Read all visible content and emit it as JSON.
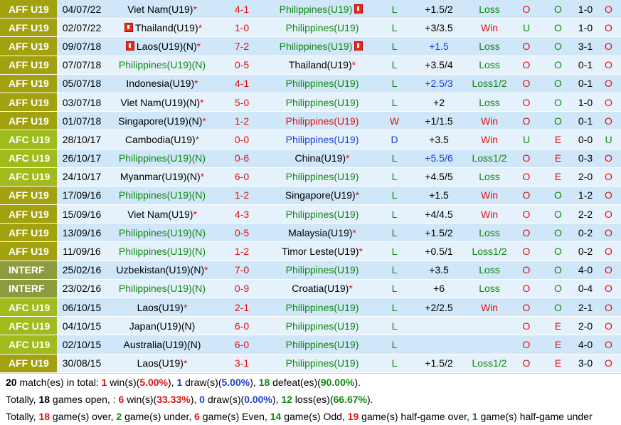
{
  "rows": [
    {
      "league": "AFF U19",
      "lg": "aff",
      "date": "04/07/22",
      "home": "Viet Nam(U19)",
      "hs": "*",
      "hc": "",
      "hflag": false,
      "score": "4-1",
      "away": "Philippines(U19)",
      "as": "",
      "ac": "green",
      "aflag": true,
      "res": "L",
      "resc": "green",
      "hcap": "+1.5/2",
      "hcapc": "",
      "wl": "Loss",
      "wlc": "green",
      "ou": "O",
      "ouc": "red",
      "x1": "O",
      "x1c": "green",
      "ht": "1-0",
      "last": "O",
      "lastc": "red"
    },
    {
      "league": "AFF U19",
      "lg": "aff",
      "date": "02/07/22",
      "home": "Thailand(U19)",
      "hs": "*",
      "hc": "",
      "hflag": true,
      "score": "1-0",
      "away": "Philippines(U19)",
      "as": "",
      "ac": "green",
      "aflag": false,
      "res": "L",
      "resc": "green",
      "hcap": "+3/3.5",
      "hcapc": "",
      "wl": "Win",
      "wlc": "red",
      "ou": "U",
      "ouc": "green",
      "x1": "O",
      "x1c": "green",
      "ht": "1-0",
      "last": "O",
      "lastc": "red"
    },
    {
      "league": "AFF U19",
      "lg": "aff",
      "date": "09/07/18",
      "home": "Laos(U19)(N)",
      "hs": "*",
      "hc": "",
      "hflag": true,
      "score": "7-2",
      "away": "Philippines(U19)",
      "as": "",
      "ac": "green",
      "aflag": true,
      "res": "L",
      "resc": "green",
      "hcap": "+1.5",
      "hcapc": "blue",
      "wl": "Loss",
      "wlc": "green",
      "ou": "O",
      "ouc": "red",
      "x1": "O",
      "x1c": "green",
      "ht": "3-1",
      "last": "O",
      "lastc": "red"
    },
    {
      "league": "AFF U19",
      "lg": "aff",
      "date": "07/07/18",
      "home": "Philippines(U19)(N)",
      "hs": "",
      "hc": "green",
      "hflag": false,
      "score": "0-5",
      "away": "Thailand(U19)",
      "as": "*",
      "ac": "",
      "aflag": false,
      "res": "L",
      "resc": "green",
      "hcap": "+3.5/4",
      "hcapc": "",
      "wl": "Loss",
      "wlc": "green",
      "ou": "O",
      "ouc": "red",
      "x1": "O",
      "x1c": "green",
      "ht": "0-1",
      "last": "O",
      "lastc": "red"
    },
    {
      "league": "AFF U19",
      "lg": "aff",
      "date": "05/07/18",
      "home": "Indonesia(U19)",
      "hs": "*",
      "hc": "",
      "hflag": false,
      "score": "4-1",
      "away": "Philippines(U19)",
      "as": "",
      "ac": "green",
      "aflag": false,
      "res": "L",
      "resc": "green",
      "hcap": "+2.5/3",
      "hcapc": "blue",
      "wl": "Loss1/2",
      "wlc": "green",
      "ou": "O",
      "ouc": "red",
      "x1": "O",
      "x1c": "green",
      "ht": "0-1",
      "last": "O",
      "lastc": "red"
    },
    {
      "league": "AFF U19",
      "lg": "aff",
      "date": "03/07/18",
      "home": "Viet Nam(U19)(N)",
      "hs": "*",
      "hc": "",
      "hflag": false,
      "score": "5-0",
      "away": "Philippines(U19)",
      "as": "",
      "ac": "green",
      "aflag": false,
      "res": "L",
      "resc": "green",
      "hcap": "+2",
      "hcapc": "",
      "wl": "Loss",
      "wlc": "green",
      "ou": "O",
      "ouc": "red",
      "x1": "O",
      "x1c": "green",
      "ht": "1-0",
      "last": "O",
      "lastc": "red"
    },
    {
      "league": "AFF U19",
      "lg": "aff",
      "date": "01/07/18",
      "home": "Singapore(U19)(N)",
      "hs": "*",
      "hc": "",
      "hflag": false,
      "score": "1-2",
      "away": "Philippines(U19)",
      "as": "",
      "ac": "red",
      "aflag": false,
      "res": "W",
      "resc": "red",
      "hcap": "+1/1.5",
      "hcapc": "",
      "wl": "Win",
      "wlc": "red",
      "ou": "O",
      "ouc": "red",
      "x1": "O",
      "x1c": "green",
      "ht": "0-1",
      "last": "O",
      "lastc": "red"
    },
    {
      "league": "AFC U19",
      "lg": "afc",
      "date": "28/10/17",
      "home": "Cambodia(U19)",
      "hs": "*",
      "hc": "",
      "hflag": false,
      "score": "0-0",
      "away": "Philippines(U19)",
      "as": "",
      "ac": "blue",
      "aflag": false,
      "res": "D",
      "resc": "blue",
      "hcap": "+3.5",
      "hcapc": "",
      "wl": "Win",
      "wlc": "red",
      "ou": "U",
      "ouc": "green",
      "x1": "E",
      "x1c": "red",
      "ht": "0-0",
      "last": "U",
      "lastc": "green"
    },
    {
      "league": "AFC U19",
      "lg": "afc",
      "date": "26/10/17",
      "home": "Philippines(U19)(N)",
      "hs": "",
      "hc": "green",
      "hflag": false,
      "score": "0-6",
      "away": "China(U19)",
      "as": "*",
      "ac": "",
      "aflag": false,
      "res": "L",
      "resc": "green",
      "hcap": "+5.5/6",
      "hcapc": "blue",
      "wl": "Loss1/2",
      "wlc": "green",
      "ou": "O",
      "ouc": "red",
      "x1": "E",
      "x1c": "red",
      "ht": "0-3",
      "last": "O",
      "lastc": "red"
    },
    {
      "league": "AFC U19",
      "lg": "afc",
      "date": "24/10/17",
      "home": "Myanmar(U19)(N)",
      "hs": "*",
      "hc": "",
      "hflag": false,
      "score": "6-0",
      "away": "Philippines(U19)",
      "as": "",
      "ac": "green",
      "aflag": false,
      "res": "L",
      "resc": "green",
      "hcap": "+4.5/5",
      "hcapc": "",
      "wl": "Loss",
      "wlc": "green",
      "ou": "O",
      "ouc": "red",
      "x1": "E",
      "x1c": "red",
      "ht": "2-0",
      "last": "O",
      "lastc": "red"
    },
    {
      "league": "AFF U19",
      "lg": "aff",
      "date": "17/09/16",
      "home": "Philippines(U19)(N)",
      "hs": "",
      "hc": "green",
      "hflag": false,
      "score": "1-2",
      "away": "Singapore(U19)",
      "as": "*",
      "ac": "",
      "aflag": false,
      "res": "L",
      "resc": "green",
      "hcap": "+1.5",
      "hcapc": "",
      "wl": "Win",
      "wlc": "red",
      "ou": "O",
      "ouc": "red",
      "x1": "O",
      "x1c": "green",
      "ht": "1-2",
      "last": "O",
      "lastc": "red"
    },
    {
      "league": "AFF U19",
      "lg": "aff",
      "date": "15/09/16",
      "home": "Viet Nam(U19)",
      "hs": "*",
      "hc": "",
      "hflag": false,
      "score": "4-3",
      "away": "Philippines(U19)",
      "as": "",
      "ac": "green",
      "aflag": false,
      "res": "L",
      "resc": "green",
      "hcap": "+4/4.5",
      "hcapc": "",
      "wl": "Win",
      "wlc": "red",
      "ou": "O",
      "ouc": "red",
      "x1": "O",
      "x1c": "green",
      "ht": "2-2",
      "last": "O",
      "lastc": "red"
    },
    {
      "league": "AFF U19",
      "lg": "aff",
      "date": "13/09/16",
      "home": "Philippines(U19)(N)",
      "hs": "",
      "hc": "green",
      "hflag": false,
      "score": "0-5",
      "away": "Malaysia(U19)",
      "as": "*",
      "ac": "",
      "aflag": false,
      "res": "L",
      "resc": "green",
      "hcap": "+1.5/2",
      "hcapc": "",
      "wl": "Loss",
      "wlc": "green",
      "ou": "O",
      "ouc": "red",
      "x1": "O",
      "x1c": "green",
      "ht": "0-2",
      "last": "O",
      "lastc": "red"
    },
    {
      "league": "AFF U19",
      "lg": "aff",
      "date": "11/09/16",
      "home": "Philippines(U19)(N)",
      "hs": "",
      "hc": "green",
      "hflag": false,
      "score": "1-2",
      "away": "Timor Leste(U19)",
      "as": "*",
      "ac": "",
      "aflag": false,
      "res": "L",
      "resc": "green",
      "hcap": "+0.5/1",
      "hcapc": "",
      "wl": "Loss1/2",
      "wlc": "green",
      "ou": "O",
      "ouc": "red",
      "x1": "O",
      "x1c": "green",
      "ht": "0-2",
      "last": "O",
      "lastc": "red"
    },
    {
      "league": "INTERF",
      "lg": "intf",
      "date": "25/02/16",
      "home": "Uzbekistan(U19)(N)",
      "hs": "*",
      "hc": "",
      "hflag": false,
      "score": "7-0",
      "away": "Philippines(U19)",
      "as": "",
      "ac": "green",
      "aflag": false,
      "res": "L",
      "resc": "green",
      "hcap": "+3.5",
      "hcapc": "",
      "wl": "Loss",
      "wlc": "green",
      "ou": "O",
      "ouc": "red",
      "x1": "O",
      "x1c": "green",
      "ht": "4-0",
      "last": "O",
      "lastc": "red"
    },
    {
      "league": "INTERF",
      "lg": "intf",
      "date": "23/02/16",
      "home": "Philippines(U19)(N)",
      "hs": "",
      "hc": "green",
      "hflag": false,
      "score": "0-9",
      "away": "Croatia(U19)",
      "as": "*",
      "ac": "",
      "aflag": false,
      "res": "L",
      "resc": "green",
      "hcap": "+6",
      "hcapc": "",
      "wl": "Loss",
      "wlc": "green",
      "ou": "O",
      "ouc": "red",
      "x1": "O",
      "x1c": "green",
      "ht": "0-4",
      "last": "O",
      "lastc": "red"
    },
    {
      "league": "AFC U19",
      "lg": "afc",
      "date": "06/10/15",
      "home": "Laos(U19)",
      "hs": "*",
      "hc": "",
      "hflag": false,
      "score": "2-1",
      "away": "Philippines(U19)",
      "as": "",
      "ac": "green",
      "aflag": false,
      "res": "L",
      "resc": "green",
      "hcap": "+2/2.5",
      "hcapc": "",
      "wl": "Win",
      "wlc": "red",
      "ou": "O",
      "ouc": "red",
      "x1": "O",
      "x1c": "green",
      "ht": "2-1",
      "last": "O",
      "lastc": "red"
    },
    {
      "league": "AFC U19",
      "lg": "afc",
      "date": "04/10/15",
      "home": "Japan(U19)(N)",
      "hs": "",
      "hc": "",
      "hflag": false,
      "score": "6-0",
      "away": "Philippines(U19)",
      "as": "",
      "ac": "green",
      "aflag": false,
      "res": "L",
      "resc": "green",
      "hcap": "",
      "hcapc": "",
      "wl": "",
      "wlc": "",
      "ou": "O",
      "ouc": "red",
      "x1": "E",
      "x1c": "red",
      "ht": "2-0",
      "last": "O",
      "lastc": "red"
    },
    {
      "league": "AFC U19",
      "lg": "afc",
      "date": "02/10/15",
      "home": "Australia(U19)(N)",
      "hs": "",
      "hc": "",
      "hflag": false,
      "score": "6-0",
      "away": "Philippines(U19)",
      "as": "",
      "ac": "green",
      "aflag": false,
      "res": "L",
      "resc": "green",
      "hcap": "",
      "hcapc": "",
      "wl": "",
      "wlc": "",
      "ou": "O",
      "ouc": "red",
      "x1": "E",
      "x1c": "red",
      "ht": "4-0",
      "last": "O",
      "lastc": "red"
    },
    {
      "league": "AFF U19",
      "lg": "aff",
      "date": "30/08/15",
      "home": "Laos(U19)",
      "hs": "*",
      "hc": "",
      "hflag": false,
      "score": "3-1",
      "away": "Philippines(U19)",
      "as": "",
      "ac": "green",
      "aflag": false,
      "res": "L",
      "resc": "green",
      "hcap": "+1.5/2",
      "hcapc": "",
      "wl": "Loss1/2",
      "wlc": "green",
      "ou": "O",
      "ouc": "red",
      "x1": "E",
      "x1c": "red",
      "ht": "3-0",
      "last": "O",
      "lastc": "red"
    }
  ],
  "summary": {
    "line1": {
      "total": "20",
      "t1": " match(es) in total: ",
      "wins": "1",
      "t2": " win(s)(",
      "winp": "5.00%",
      "t3": "), ",
      "draws": "1",
      "t4": " draw(s)(",
      "drawp": "5.00%",
      "t5": "), ",
      "def": "18",
      "t6": " defeat(es)(",
      "defp": "90.00%",
      "t7": ")."
    },
    "line2": {
      "t0": "Totally, ",
      "open": "18",
      "t1": " games open, : ",
      "wins": "6",
      "t2": " win(s)(",
      "winp": "33.33%",
      "t3": "), ",
      "draws": "0",
      "t4": " draw(s)(",
      "drawp": "0.00%",
      "t5": "), ",
      "loss": "12",
      "t6": " loss(es)(",
      "lossp": "66.67%",
      "t7": ")."
    },
    "line3": {
      "t0": "Totally, ",
      "over": "18",
      "t1": " game(s) over, ",
      "under": "2",
      "t2": " game(s) under, ",
      "even": "6",
      "t3": " game(s) Even, ",
      "odd": "14",
      "t4": " game(s) Odd, ",
      "hgo": "19",
      "t5": " game(s) half-game over, ",
      "hgu": "1",
      "t6": " game(s) half-game under"
    }
  },
  "colors": {
    "aff": "#a3a10f",
    "afc": "#9fbc1c",
    "intf": "#8b9b3e",
    "row_odd": "#cfe7f8",
    "row_even": "#e6f2fb"
  }
}
